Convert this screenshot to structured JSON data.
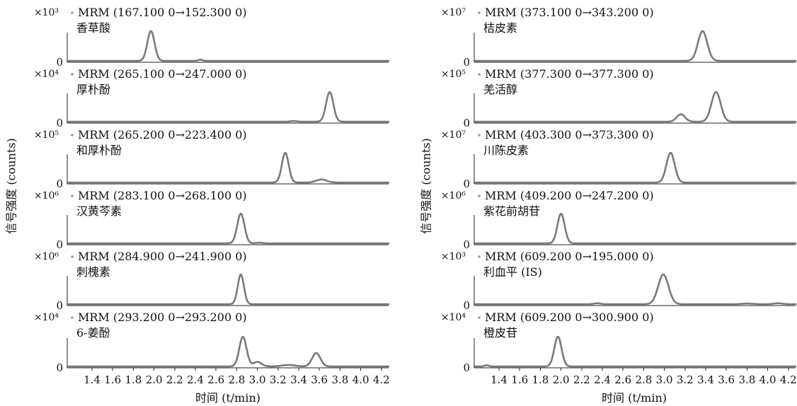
{
  "axis": {
    "xlabel": "时间 (t/min)",
    "ylabel": "信号强度 (counts)",
    "x_ticks": [
      "1.4",
      "1.6",
      "1.8",
      "2.0",
      "2.2",
      "2.4",
      "2.6",
      "2.8",
      "3.0",
      "3.2",
      "3.4",
      "3.6",
      "3.8",
      "4.0",
      "4.2"
    ],
    "zero_label": "0"
  },
  "colors": {
    "trace": "#7a7a7a",
    "axis": "#222222"
  },
  "chart_data": [
    {
      "type": "line",
      "xlabel": "时间 (t/min)",
      "ylabel": "信号强度 (counts)",
      "xlim": [
        1.2,
        4.25
      ],
      "panels": [
        {
          "mrm": "MRM (167.100 0→152.300 0)",
          "compound": "香草酸",
          "multiplier": "×10³",
          "peaks": [
            [
              1.97,
              1.0,
              0.035
            ],
            [
              2.45,
              0.04,
              0.02
            ]
          ]
        },
        {
          "mrm": "MRM (265.100 0→247.000 0)",
          "compound": "厚朴酚",
          "multiplier": "×10⁴",
          "peaks": [
            [
              3.7,
              1.0,
              0.035
            ],
            [
              3.35,
              0.02,
              0.03
            ]
          ]
        },
        {
          "mrm": "MRM (265.200 0→223.400 0)",
          "compound": "和厚朴酚",
          "multiplier": "×10⁵",
          "peaks": [
            [
              3.27,
              1.0,
              0.033
            ],
            [
              3.62,
              0.1,
              0.05
            ]
          ]
        },
        {
          "mrm": "MRM (283.100 0→268.100 0)",
          "compound": "汉黄芩素",
          "multiplier": "×10⁶",
          "peaks": [
            [
              2.84,
              1.0,
              0.035
            ],
            [
              3.02,
              0.02,
              0.03
            ]
          ]
        },
        {
          "mrm": "MRM (284.900 0→241.900 0)",
          "compound": "刺槐素",
          "multiplier": "×10⁶",
          "peaks": [
            [
              2.84,
              1.0,
              0.03
            ]
          ]
        },
        {
          "mrm": "MRM (293.200 0→293.200 0)",
          "compound": "6-姜酚",
          "multiplier": "×10⁴",
          "peaks": [
            [
              2.86,
              1.0,
              0.035
            ],
            [
              3.0,
              0.15,
              0.04
            ],
            [
              3.57,
              0.45,
              0.04
            ],
            [
              3.3,
              0.05,
              0.06
            ]
          ]
        }
      ]
    },
    {
      "type": "line",
      "xlabel": "时间 (t/min)",
      "ylabel": "信号强度 (counts)",
      "xlim": [
        1.2,
        4.25
      ],
      "panels": [
        {
          "mrm": "MRM (373.100 0→343.200 0)",
          "compound": "桔皮素",
          "multiplier": "×10⁷",
          "peaks": [
            [
              3.37,
              1.0,
              0.045
            ]
          ]
        },
        {
          "mrm": "MRM (377.300 0→377.300 0)",
          "compound": "羌活醇",
          "multiplier": "×10⁵",
          "peaks": [
            [
              3.5,
              1.0,
              0.045
            ],
            [
              3.16,
              0.25,
              0.04
            ]
          ]
        },
        {
          "mrm": "MRM (403.300 0→373.300 0)",
          "compound": "川陈皮素",
          "multiplier": "×10⁷",
          "peaks": [
            [
              3.06,
              1.0,
              0.04
            ]
          ]
        },
        {
          "mrm": "MRM (409.200 0→247.200 0)",
          "compound": "紫花前胡苷",
          "multiplier": "×10⁶",
          "peaks": [
            [
              2.0,
              1.0,
              0.035
            ]
          ]
        },
        {
          "mrm": "MRM (609.200 0→195.000 0)",
          "compound": "利血平 (IS)",
          "multiplier": "×10³",
          "peaks": [
            [
              2.99,
              1.0,
              0.05
            ],
            [
              2.35,
              0.03,
              0.03
            ],
            [
              3.8,
              0.02,
              0.05
            ],
            [
              4.1,
              0.03,
              0.04
            ]
          ]
        },
        {
          "mrm": "MRM (609.200 0→300.900 0)",
          "compound": "橙皮苷",
          "multiplier": "×10⁴",
          "peaks": [
            [
              1.97,
              1.0,
              0.035
            ],
            [
              1.28,
              0.04,
              0.02
            ]
          ]
        }
      ]
    }
  ]
}
